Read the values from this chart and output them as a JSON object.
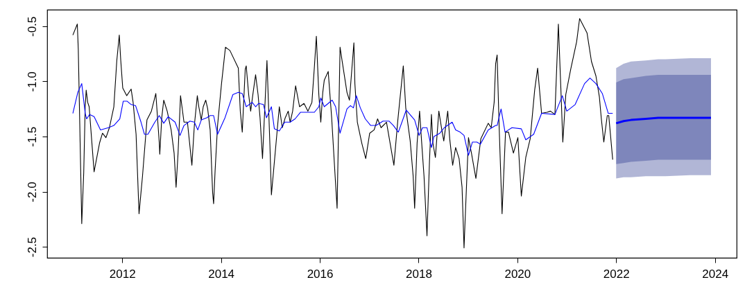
{
  "chart_data": {
    "type": "line",
    "xlim": [
      2010.48,
      2024.44
    ],
    "ylim": [
      -2.6,
      -0.35
    ],
    "xticks": [
      2012,
      2014,
      2016,
      2018,
      2020,
      2022,
      2024
    ],
    "yticks": [
      -0.5,
      {
        "value": -1,
        "label": "-1.0"
      },
      -1.5,
      {
        "value": -2,
        "label": "-2.0"
      },
      -2.5
    ],
    "grid": false,
    "series": [
      {
        "color": "#000000",
        "x": [
          2011.0,
          2011.09,
          2011.11,
          2011.18,
          2011.22,
          2011.25,
          2011.27,
          2011.3,
          2011.33,
          2011.43,
          2011.54,
          2011.6,
          2011.67,
          2011.74,
          2011.83,
          2011.89,
          2011.94,
          2011.97,
          2012.01,
          2012.09,
          2012.18,
          2012.22,
          2012.28,
          2012.34,
          2012.41,
          2012.5,
          2012.59,
          2012.68,
          2012.75,
          2012.76,
          2012.8,
          2012.84,
          2012.91,
          2012.99,
          2013.05,
          2013.09,
          2013.13,
          2013.18,
          2013.25,
          2013.32,
          2013.41,
          2013.46,
          2013.52,
          2013.55,
          2013.6,
          2013.64,
          2013.69,
          2013.73,
          2013.78,
          2013.83,
          2013.85,
          2013.88,
          2013.93,
          2014.01,
          2014.09,
          2014.18,
          2014.35,
          2014.39,
          2014.43,
          2014.45,
          2014.49,
          2014.51,
          2014.56,
          2014.6,
          2014.65,
          2014.7,
          2014.75,
          2014.79,
          2014.84,
          2014.86,
          2014.93,
          2014.99,
          2015.02,
          2015.11,
          2015.18,
          2015.24,
          2015.3,
          2015.36,
          2015.4,
          2015.45,
          2015.51,
          2015.59,
          2015.68,
          2015.76,
          2015.84,
          2015.89,
          2015.93,
          2015.98,
          2016.02,
          2016.06,
          2016.09,
          2016.17,
          2016.24,
          2016.31,
          2016.35,
          2016.41,
          2016.45,
          2016.55,
          2016.6,
          2016.69,
          2016.71,
          2016.76,
          2016.85,
          2016.93,
          2017.01,
          2017.1,
          2017.17,
          2017.24,
          2017.35,
          2017.5,
          2017.58,
          2017.69,
          2017.74,
          2017.83,
          2017.89,
          2017.92,
          2017.97,
          2018.02,
          2018.06,
          2018.11,
          2018.17,
          2018.22,
          2018.26,
          2018.29,
          2018.34,
          2018.41,
          2018.47,
          2018.51,
          2018.59,
          2018.63,
          2018.69,
          2018.75,
          2018.82,
          2018.88,
          2018.92,
          2018.95,
          2019.01,
          2019.07,
          2019.16,
          2019.26,
          2019.41,
          2019.47,
          2019.53,
          2019.56,
          2019.59,
          2019.63,
          2019.69,
          2019.76,
          2019.82,
          2019.92,
          2020.01,
          2020.08,
          2020.17,
          2020.26,
          2020.35,
          2020.41,
          2020.49,
          2020.6,
          2020.67,
          2020.76,
          2020.83,
          2020.88,
          2020.92,
          2020.98,
          2021.08,
          2021.2,
          2021.26,
          2021.41,
          2021.5,
          2021.59,
          2021.66,
          2021.7,
          2021.75,
          2021.82,
          2021.85,
          2021.93
        ],
        "values": [
          -0.58,
          -0.48,
          -0.71,
          -2.29,
          -1.83,
          -1.23,
          -1.08,
          -1.19,
          -1.23,
          -1.82,
          -1.56,
          -1.47,
          -1.51,
          -1.42,
          -1.23,
          -0.81,
          -0.58,
          -0.81,
          -1.06,
          -1.13,
          -1.07,
          -1.19,
          -1.48,
          -2.2,
          -1.86,
          -1.35,
          -1.27,
          -1.11,
          -1.56,
          -1.66,
          -1.33,
          -1.17,
          -1.27,
          -1.44,
          -1.65,
          -1.96,
          -1.65,
          -1.13,
          -1.37,
          -1.37,
          -1.76,
          -1.4,
          -1.13,
          -1.23,
          -1.35,
          -1.23,
          -1.17,
          -1.25,
          -1.44,
          -2.01,
          -2.11,
          -1.81,
          -1.4,
          -1.02,
          -0.69,
          -0.72,
          -0.88,
          -1.27,
          -1.46,
          -1.27,
          -0.89,
          -0.86,
          -1.12,
          -1.27,
          -1.1,
          -0.94,
          -1.12,
          -1.33,
          -1.7,
          -1.5,
          -0.81,
          -1.58,
          -2.03,
          -1.58,
          -1.23,
          -1.42,
          -1.33,
          -1.27,
          -1.37,
          -1.27,
          -1.04,
          -1.23,
          -1.2,
          -1.27,
          -1.19,
          -0.87,
          -0.59,
          -1.12,
          -1.37,
          -1.1,
          -0.99,
          -0.91,
          -1.33,
          -1.86,
          -2.15,
          -0.69,
          -0.81,
          -1.1,
          -1.17,
          -0.65,
          -1.02,
          -1.37,
          -1.56,
          -1.7,
          -1.47,
          -1.44,
          -1.34,
          -1.42,
          -1.37,
          -1.76,
          -1.35,
          -0.86,
          -1.24,
          -1.54,
          -1.86,
          -2.15,
          -1.56,
          -1.27,
          -1.54,
          -1.86,
          -2.4,
          -1.73,
          -1.3,
          -1.56,
          -1.69,
          -1.27,
          -1.44,
          -1.54,
          -1.27,
          -1.52,
          -1.76,
          -1.6,
          -1.7,
          -1.96,
          -2.51,
          -2.17,
          -1.51,
          -1.65,
          -1.88,
          -1.52,
          -1.38,
          -1.42,
          -1.19,
          -0.84,
          -0.76,
          -1.4,
          -2.2,
          -1.46,
          -1.46,
          -1.65,
          -1.51,
          -2.04,
          -1.69,
          -1.52,
          -1.08,
          -0.88,
          -1.29,
          -1.28,
          -1.27,
          -1.3,
          -0.48,
          -1.06,
          -1.55,
          -1.12,
          -0.89,
          -0.64,
          -0.43,
          -0.56,
          -0.82,
          -0.95,
          -1.14,
          -1.34,
          -1.55,
          -1.31,
          -1.31,
          -1.71
        ]
      },
      {
        "color": "#0000ff",
        "x": [
          2011.0,
          2011.1,
          2011.18,
          2011.25,
          2011.28,
          2011.34,
          2011.43,
          2011.56,
          2011.72,
          2011.83,
          2011.95,
          2012.02,
          2012.1,
          2012.18,
          2012.27,
          2012.38,
          2012.45,
          2012.52,
          2012.66,
          2012.75,
          2012.84,
          2012.93,
          2013.07,
          2013.17,
          2013.25,
          2013.37,
          2013.46,
          2013.53,
          2013.6,
          2013.71,
          2013.78,
          2013.85,
          2013.93,
          2014.08,
          2014.24,
          2014.35,
          2014.43,
          2014.51,
          2014.63,
          2014.7,
          2014.76,
          2014.86,
          2014.92,
          2015.02,
          2015.08,
          2015.18,
          2015.29,
          2015.4,
          2015.5,
          2015.61,
          2015.77,
          2015.89,
          2015.98,
          2016.02,
          2016.09,
          2016.25,
          2016.32,
          2016.41,
          2016.55,
          2016.62,
          2016.68,
          2016.74,
          2016.82,
          2016.92,
          2017.03,
          2017.14,
          2017.28,
          2017.4,
          2017.49,
          2017.59,
          2017.67,
          2017.75,
          2017.92,
          2018.01,
          2018.08,
          2018.17,
          2018.26,
          2018.31,
          2018.43,
          2018.52,
          2018.68,
          2018.75,
          2018.84,
          2018.92,
          2019.01,
          2019.09,
          2019.18,
          2019.25,
          2019.41,
          2019.56,
          2019.59,
          2019.67,
          2019.75,
          2019.89,
          2020.08,
          2020.17,
          2020.33,
          2020.49,
          2020.76,
          2020.91,
          2021.0,
          2021.17,
          2021.36,
          2021.47,
          2021.59,
          2021.72,
          2021.84,
          2021.93,
          2022.0,
          2022.15,
          2022.3,
          2022.6,
          2022.85,
          2023.0,
          2023.5,
          2023.92
        ],
        "values": [
          -1.29,
          -1.1,
          -1.02,
          -1.29,
          -1.34,
          -1.3,
          -1.32,
          -1.44,
          -1.42,
          -1.4,
          -1.34,
          -1.18,
          -1.18,
          -1.21,
          -1.22,
          -1.37,
          -1.48,
          -1.48,
          -1.37,
          -1.31,
          -1.38,
          -1.32,
          -1.37,
          -1.49,
          -1.4,
          -1.36,
          -1.37,
          -1.44,
          -1.35,
          -1.33,
          -1.31,
          -1.31,
          -1.48,
          -1.33,
          -1.12,
          -1.1,
          -1.11,
          -1.23,
          -1.19,
          -1.23,
          -1.2,
          -1.21,
          -1.33,
          -1.23,
          -1.43,
          -1.45,
          -1.37,
          -1.37,
          -1.34,
          -1.28,
          -1.28,
          -1.28,
          -1.23,
          -1.15,
          -1.23,
          -1.17,
          -1.23,
          -1.47,
          -1.25,
          -1.22,
          -1.24,
          -1.13,
          -1.24,
          -1.34,
          -1.4,
          -1.4,
          -1.36,
          -1.36,
          -1.4,
          -1.46,
          -1.36,
          -1.26,
          -1.35,
          -1.49,
          -1.42,
          -1.42,
          -1.6,
          -1.5,
          -1.47,
          -1.42,
          -1.37,
          -1.44,
          -1.46,
          -1.49,
          -1.67,
          -1.55,
          -1.55,
          -1.57,
          -1.44,
          -1.4,
          -1.4,
          -1.25,
          -1.46,
          -1.42,
          -1.43,
          -1.53,
          -1.48,
          -1.29,
          -1.3,
          -1.13,
          -1.27,
          -1.21,
          -1.02,
          -0.97,
          -1.02,
          -1.11,
          -1.29,
          -1.29,
          null,
          null,
          null,
          null,
          null,
          null,
          null,
          null
        ],
        "lower": [
          null,
          null,
          null,
          null,
          null,
          null,
          null,
          null,
          null,
          null,
          null,
          null,
          null,
          null,
          null,
          null,
          null,
          null,
          null,
          null,
          null,
          null,
          null,
          null,
          null,
          null,
          null,
          null,
          null,
          null,
          null,
          null,
          null,
          null,
          null,
          null,
          null,
          null,
          null,
          null,
          null,
          null,
          null,
          null,
          null,
          null,
          null,
          null,
          null,
          null,
          null,
          null,
          null,
          null,
          null,
          null,
          null,
          null,
          null,
          null,
          null,
          null,
          null,
          null,
          null,
          null,
          null,
          null,
          null,
          null,
          null,
          null,
          null,
          null,
          null,
          null,
          null,
          null,
          null,
          null,
          null,
          null,
          null,
          null,
          null,
          null,
          null,
          null,
          null,
          null,
          null,
          null,
          null,
          null,
          null,
          null,
          null,
          null,
          null,
          null,
          null,
          null,
          null,
          null,
          null,
          null,
          null,
          null,
          -1.88,
          -1.87,
          -1.87,
          -1.86,
          -1.86,
          -1.86,
          -1.85,
          -1.85
        ],
        "upper": [
          null,
          null,
          null,
          null,
          null,
          null,
          null,
          null,
          null,
          null,
          null,
          null,
          null,
          null,
          null,
          null,
          null,
          null,
          null,
          null,
          null,
          null,
          null,
          null,
          null,
          null,
          null,
          null,
          null,
          null,
          null,
          null,
          null,
          null,
          null,
          null,
          null,
          null,
          null,
          null,
          null,
          null,
          null,
          null,
          null,
          null,
          null,
          null,
          null,
          null,
          null,
          null,
          null,
          null,
          null,
          null,
          null,
          null,
          null,
          null,
          null,
          null,
          null,
          null,
          null,
          null,
          null,
          null,
          null,
          null,
          null,
          null,
          null,
          null,
          null,
          null,
          null,
          null,
          null,
          null,
          null,
          null,
          null,
          null,
          null,
          null,
          null,
          null,
          null,
          null,
          null,
          null,
          null,
          null,
          null,
          null,
          null,
          null,
          null,
          null,
          null,
          null,
          null,
          null,
          null,
          null,
          null,
          null,
          -0.88,
          -0.84,
          -0.82,
          -0.81,
          -0.8,
          -0.8,
          -0.79,
          -0.79
        ]
      },
      {
        "color": "#0000ff",
        "x": [
          2022.0,
          2022.15,
          2022.3,
          2022.6,
          2022.85,
          2023.0,
          2023.5,
          2023.92
        ],
        "values": [
          -1.38,
          -1.36,
          -1.35,
          -1.34,
          -1.33,
          -1.33,
          -1.33,
          -1.33
        ],
        "lower": [
          -1.75,
          -1.74,
          -1.73,
          -1.72,
          -1.71,
          -1.71,
          -1.71,
          -1.71
        ],
        "upper": [
          -1.01,
          -0.98,
          -0.97,
          -0.95,
          -0.94,
          -0.94,
          -0.94,
          -0.94
        ]
      }
    ]
  }
}
